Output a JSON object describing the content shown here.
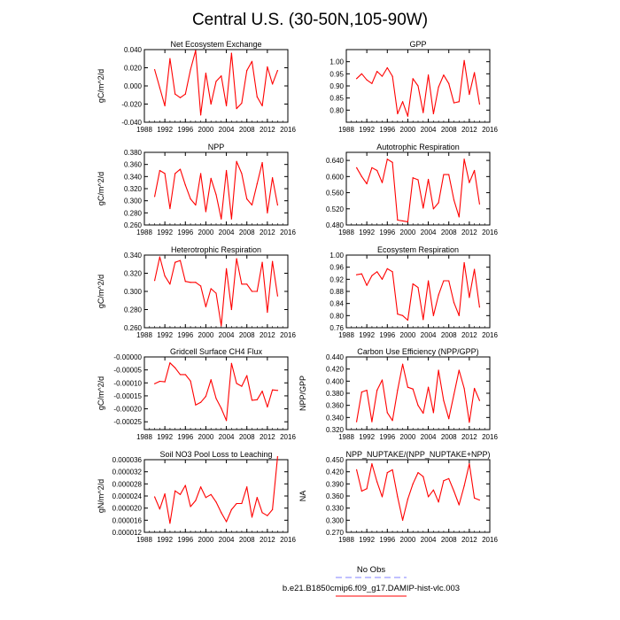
{
  "page": {
    "title": "Central U.S. (30-50N,105-90W)",
    "line_color": "#ff0000",
    "obs_color": "#8080ff"
  },
  "legend": {
    "obs_label": "No Obs",
    "model_label": "b.e21.B1850cmip6.f09_g17.DAMIP-hist-vlc.003"
  },
  "chart_data": [
    {
      "type": "line",
      "title": "Net Ecosystem Exchange",
      "ylabel": "gC/m^2/d",
      "xlim": [
        1988,
        2016
      ],
      "ylim": [
        -0.04,
        0.04
      ],
      "xticks": [
        "1988",
        "1992",
        "1996",
        "2000",
        "2004",
        "2008",
        "2012",
        "2016"
      ],
      "yticks": [
        "-0.040",
        "-0.020",
        "0.000",
        "0.020",
        "0.040"
      ],
      "x": [
        1990,
        1991,
        1992,
        1993,
        1994,
        1995,
        1996,
        1997,
        1998,
        1999,
        2000,
        2001,
        2002,
        2003,
        2004,
        2005,
        2006,
        2007,
        2008,
        2009,
        2010,
        2011,
        2012,
        2013,
        2014
      ],
      "y": [
        0.018,
        -0.002,
        -0.022,
        0.03,
        -0.009,
        -0.013,
        -0.009,
        0.018,
        0.039,
        -0.032,
        0.014,
        -0.02,
        0.005,
        0.011,
        -0.022,
        0.036,
        -0.025,
        -0.019,
        0.017,
        0.027,
        -0.012,
        -0.022,
        0.021,
        0.002,
        0.017
      ]
    },
    {
      "type": "line",
      "title": "GPP",
      "ylabel": "",
      "xlim": [
        1988,
        2016
      ],
      "ylim": [
        0.75,
        1.05
      ],
      "xticks": [
        "1988",
        "1992",
        "1996",
        "2000",
        "2004",
        "2008",
        "2012",
        "2016"
      ],
      "yticks": [
        "0.80",
        "0.85",
        "0.90",
        "0.95",
        "1.00"
      ],
      "x": [
        1990,
        1991,
        1992,
        1993,
        1994,
        1995,
        1996,
        1997,
        1998,
        1999,
        2000,
        2001,
        2002,
        2003,
        2004,
        2005,
        2006,
        2007,
        2008,
        2009,
        2010,
        2011,
        2012,
        2013,
        2014
      ],
      "y": [
        0.93,
        0.95,
        0.925,
        0.91,
        0.96,
        0.94,
        0.975,
        0.94,
        0.785,
        0.835,
        0.775,
        0.93,
        0.9,
        0.79,
        0.945,
        0.785,
        0.895,
        0.945,
        0.91,
        0.83,
        0.835,
        1.005,
        0.865,
        0.955,
        0.825
      ]
    },
    {
      "type": "line",
      "title": "NPP",
      "ylabel": "gC/m^2/d",
      "xlim": [
        1988,
        2016
      ],
      "ylim": [
        0.26,
        0.38
      ],
      "xticks": [
        "1988",
        "1992",
        "1996",
        "2000",
        "2004",
        "2008",
        "2012",
        "2016"
      ],
      "yticks": [
        "0.260",
        "0.280",
        "0.300",
        "0.320",
        "0.340",
        "0.360",
        "0.380"
      ],
      "x": [
        1990,
        1991,
        1992,
        1993,
        1994,
        1995,
        1996,
        1997,
        1998,
        1999,
        2000,
        2001,
        2002,
        2003,
        2004,
        2005,
        2006,
        2007,
        2008,
        2009,
        2010,
        2011,
        2012,
        2013,
        2014
      ],
      "y": [
        0.307,
        0.35,
        0.345,
        0.287,
        0.345,
        0.352,
        0.326,
        0.303,
        0.293,
        0.345,
        0.282,
        0.337,
        0.31,
        0.27,
        0.35,
        0.27,
        0.365,
        0.345,
        0.303,
        0.293,
        0.328,
        0.363,
        0.28,
        0.338,
        0.293
      ]
    },
    {
      "type": "line",
      "title": "Autotrophic Respiration",
      "ylabel": "",
      "xlim": [
        1988,
        2016
      ],
      "ylim": [
        0.48,
        0.66
      ],
      "xticks": [
        "1988",
        "1992",
        "1996",
        "2000",
        "2004",
        "2008",
        "2012",
        "2016"
      ],
      "yticks": [
        "0.480",
        "0.520",
        "0.560",
        "0.600",
        "0.640"
      ],
      "x": [
        1990,
        1991,
        1992,
        1993,
        1994,
        1995,
        1996,
        1997,
        1998,
        1999,
        2000,
        2001,
        2002,
        2003,
        2004,
        2005,
        2006,
        2007,
        2008,
        2009,
        2010,
        2011,
        2012,
        2013,
        2014
      ],
      "y": [
        0.622,
        0.6,
        0.582,
        0.622,
        0.615,
        0.585,
        0.643,
        0.635,
        0.492,
        0.49,
        0.488,
        0.597,
        0.592,
        0.522,
        0.593,
        0.52,
        0.535,
        0.605,
        0.605,
        0.542,
        0.5,
        0.643,
        0.585,
        0.615,
        0.532
      ]
    },
    {
      "type": "line",
      "title": "Heterotrophic Respiration",
      "ylabel": "gC/m^2/d",
      "xlim": [
        1988,
        2016
      ],
      "ylim": [
        0.26,
        0.34
      ],
      "xticks": [
        "1988",
        "1992",
        "1996",
        "2000",
        "2004",
        "2008",
        "2012",
        "2016"
      ],
      "yticks": [
        "0.260",
        "0.280",
        "0.300",
        "0.320",
        "0.340"
      ],
      "x": [
        1990,
        1991,
        1992,
        1993,
        1994,
        1995,
        1996,
        1997,
        1998,
        1999,
        2000,
        2001,
        2002,
        2003,
        2004,
        2005,
        2006,
        2007,
        2008,
        2009,
        2010,
        2011,
        2012,
        2013,
        2014
      ],
      "y": [
        0.312,
        0.338,
        0.317,
        0.308,
        0.332,
        0.334,
        0.311,
        0.31,
        0.31,
        0.306,
        0.283,
        0.303,
        0.298,
        0.262,
        0.325,
        0.28,
        0.336,
        0.308,
        0.308,
        0.3,
        0.3,
        0.332,
        0.277,
        0.333,
        0.295
      ]
    },
    {
      "type": "line",
      "title": "Ecosystem Respiration",
      "ylabel": "",
      "xlim": [
        1988,
        2016
      ],
      "ylim": [
        0.76,
        1.0
      ],
      "xticks": [
        "1988",
        "1992",
        "1996",
        "2000",
        "2004",
        "2008",
        "2012",
        "2016"
      ],
      "yticks": [
        "0.76",
        "0.80",
        "0.84",
        "0.88",
        "0.92",
        "0.96",
        "1.00"
      ],
      "x": [
        1990,
        1991,
        1992,
        1993,
        1994,
        1995,
        1996,
        1997,
        1998,
        1999,
        2000,
        2001,
        2002,
        2003,
        2004,
        2005,
        2006,
        2007,
        2008,
        2009,
        2010,
        2011,
        2012,
        2013,
        2014
      ],
      "y": [
        0.935,
        0.938,
        0.9,
        0.932,
        0.945,
        0.92,
        0.955,
        0.945,
        0.805,
        0.8,
        0.785,
        0.905,
        0.893,
        0.787,
        0.915,
        0.8,
        0.868,
        0.915,
        0.915,
        0.843,
        0.8,
        0.975,
        0.86,
        0.953,
        0.828
      ]
    },
    {
      "type": "line",
      "title": "Gridcell Surface CH4 Flux",
      "ylabel": "gC/m^2/d",
      "xlim": [
        1988,
        2016
      ],
      "ylim": [
        -0.00028,
        0.0
      ],
      "xticks": [
        "1988",
        "1992",
        "1996",
        "2000",
        "2004",
        "2008",
        "2012",
        "2016"
      ],
      "yticks": [
        "-0.00025",
        "-0.00020",
        "-0.00015",
        "-0.00010",
        "-0.00005",
        "-0.00000"
      ],
      "x": [
        1990,
        1991,
        1992,
        1993,
        1994,
        1995,
        1996,
        1997,
        1998,
        1999,
        2000,
        2001,
        2002,
        2003,
        2004,
        2005,
        2006,
        2007,
        2008,
        2009,
        2010,
        2011,
        2012,
        2013,
        2014
      ],
      "y": [
        -0.000103,
        -9.4e-05,
        -9.6e-05,
        -2.3e-05,
        -4.2e-05,
        -6.8e-05,
        -6.8e-05,
        -9.3e-05,
        -0.000185,
        -0.000175,
        -0.000152,
        -8.8e-05,
        -0.00016,
        -0.000198,
        -0.000245,
        -2.5e-05,
        -0.000102,
        -0.000113,
        -7.2e-05,
        -0.000167,
        -0.000165,
        -0.000132,
        -0.000193,
        -0.000127,
        -0.000129
      ]
    },
    {
      "type": "line",
      "title": "Carbon Use Efficiency (NPP/GPP)",
      "ylabel": "NPP/GPP",
      "xlim": [
        1988,
        2016
      ],
      "ylim": [
        0.32,
        0.44
      ],
      "xticks": [
        "1988",
        "1992",
        "1996",
        "2000",
        "2004",
        "2008",
        "2012",
        "2016"
      ],
      "yticks": [
        "0.320",
        "0.340",
        "0.360",
        "0.380",
        "0.400",
        "0.420",
        "0.440"
      ],
      "x": [
        1990,
        1991,
        1992,
        1993,
        1994,
        1995,
        1996,
        1997,
        1998,
        1999,
        2000,
        2001,
        2002,
        2003,
        2004,
        2005,
        2006,
        2007,
        2008,
        2009,
        2010,
        2011,
        2012,
        2013,
        2014
      ],
      "y": [
        0.333,
        0.382,
        0.385,
        0.333,
        0.385,
        0.402,
        0.348,
        0.335,
        0.385,
        0.428,
        0.39,
        0.387,
        0.36,
        0.347,
        0.39,
        0.348,
        0.418,
        0.368,
        0.338,
        0.378,
        0.418,
        0.388,
        0.332,
        0.388,
        0.368
      ]
    },
    {
      "type": "line",
      "title": "Soil NO3 Pool Loss to Leaching",
      "ylabel": "gN/m^2/d",
      "xlim": [
        1988,
        2016
      ],
      "ylim": [
        1.2e-05,
        3.6e-05
      ],
      "xticks": [
        "1988",
        "1992",
        "1996",
        "2000",
        "2004",
        "2008",
        "2012",
        "2016"
      ],
      "yticks": [
        "0.000012",
        "0.000016",
        "0.000020",
        "0.000024",
        "0.000028",
        "0.000032",
        "0.000036"
      ],
      "x": [
        1990,
        1991,
        1992,
        1993,
        1994,
        1995,
        1996,
        1997,
        1998,
        1999,
        2000,
        2001,
        2002,
        2003,
        2004,
        2005,
        2006,
        2007,
        2008,
        2009,
        2010,
        2011,
        2012,
        2013,
        2014
      ],
      "y": [
        2.37e-05,
        1.97e-05,
        2.47e-05,
        1.5e-05,
        2.57e-05,
        2.45e-05,
        2.75e-05,
        2.05e-05,
        2.25e-05,
        2.7e-05,
        2.35e-05,
        2.45e-05,
        2.2e-05,
        1.85e-05,
        1.55e-05,
        1.95e-05,
        2.15e-05,
        2.15e-05,
        2.7e-05,
        1.7e-05,
        2.35e-05,
        1.85e-05,
        1.75e-05,
        1.95e-05,
        3.7e-05
      ]
    },
    {
      "type": "line",
      "title": "NPP_NUPTAKE/(NPP_NUPTAKE+NPP)",
      "ylabel": "NA",
      "xlim": [
        1988,
        2016
      ],
      "ylim": [
        0.27,
        0.45
      ],
      "xticks": [
        "1988",
        "1992",
        "1996",
        "2000",
        "2004",
        "2008",
        "2012",
        "2016"
      ],
      "yticks": [
        "0.270",
        "0.300",
        "0.330",
        "0.360",
        "0.390",
        "0.420",
        "0.450"
      ],
      "x": [
        1990,
        1991,
        1992,
        1993,
        1994,
        1995,
        1996,
        1997,
        1998,
        1999,
        2000,
        2001,
        2002,
        2003,
        2004,
        2005,
        2006,
        2007,
        2008,
        2009,
        2010,
        2011,
        2012,
        2013,
        2014
      ],
      "y": [
        0.425,
        0.372,
        0.378,
        0.44,
        0.395,
        0.358,
        0.418,
        0.425,
        0.358,
        0.3,
        0.352,
        0.39,
        0.418,
        0.408,
        0.358,
        0.375,
        0.345,
        0.398,
        0.403,
        0.372,
        0.338,
        0.385,
        0.44,
        0.355,
        0.35
      ]
    }
  ]
}
